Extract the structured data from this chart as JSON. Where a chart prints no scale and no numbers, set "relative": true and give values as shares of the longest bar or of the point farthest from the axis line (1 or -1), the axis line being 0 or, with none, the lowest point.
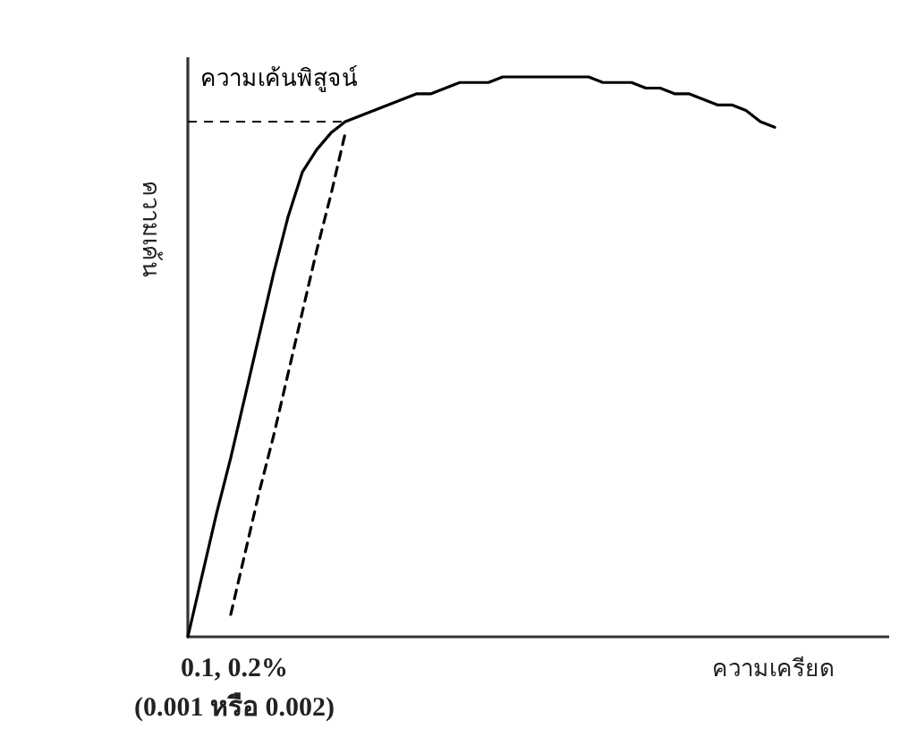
{
  "chart_data": {
    "type": "line",
    "relative": true,
    "xlabel": "ความเครียด",
    "ylabel": "ความเค้น",
    "categories": [
      null,
      null,
      null,
      null,
      null,
      null,
      null,
      null,
      null,
      null,
      null,
      null,
      null,
      null,
      null,
      null,
      null,
      null,
      null,
      null,
      null,
      null,
      null,
      null,
      null,
      null,
      null,
      null,
      null,
      null,
      null,
      null,
      null,
      null,
      null,
      null,
      null,
      null,
      null,
      null,
      null,
      null,
      null,
      null,
      null,
      null,
      null,
      null,
      null,
      null
    ],
    "series": [
      {
        "color": "#000000",
        "line_style": "solid",
        "values": [
          0,
          0.11,
          0.22,
          0.32,
          0.43,
          0.54,
          0.65,
          0.75,
          0.83,
          0.87,
          0.9,
          0.92,
          0.93,
          0.94,
          0.95,
          0.96,
          0.97,
          0.97,
          0.98,
          0.99,
          0.99,
          0.99,
          1.0,
          1.0,
          1.0,
          1.0,
          1.0,
          1.0,
          1.0,
          0.99,
          0.99,
          0.99,
          0.98,
          0.98,
          0.97,
          0.97,
          0.96,
          0.95,
          0.95,
          0.94,
          0.92,
          0.91,
          null,
          null,
          null,
          null,
          null,
          null,
          null,
          null
        ]
      },
      {
        "color": "#000000",
        "line_style": "dashed",
        "values": [
          null,
          null,
          null,
          0.04,
          0.15,
          0.26,
          0.36,
          0.47,
          0.58,
          0.69,
          0.79,
          0.9,
          null,
          null,
          null,
          null,
          null,
          null,
          null,
          null,
          null,
          null,
          null,
          null,
          null,
          null,
          null,
          null,
          null,
          null,
          null,
          null,
          null,
          null,
          null,
          null,
          null,
          null,
          null,
          null,
          null,
          null,
          null,
          null,
          null,
          null,
          null,
          null,
          null,
          null
        ]
      }
    ],
    "ref_lines": [
      {
        "axis": "y",
        "value": 0.92,
        "label": "ความเค้นพิสูจน์",
        "line_style": "dashed",
        "color": "#000000"
      }
    ],
    "annotations": [
      "0.1, 0.2%\n(0.001 หรือ 0.002)"
    ],
    "grid": false,
    "marker": "none"
  }
}
